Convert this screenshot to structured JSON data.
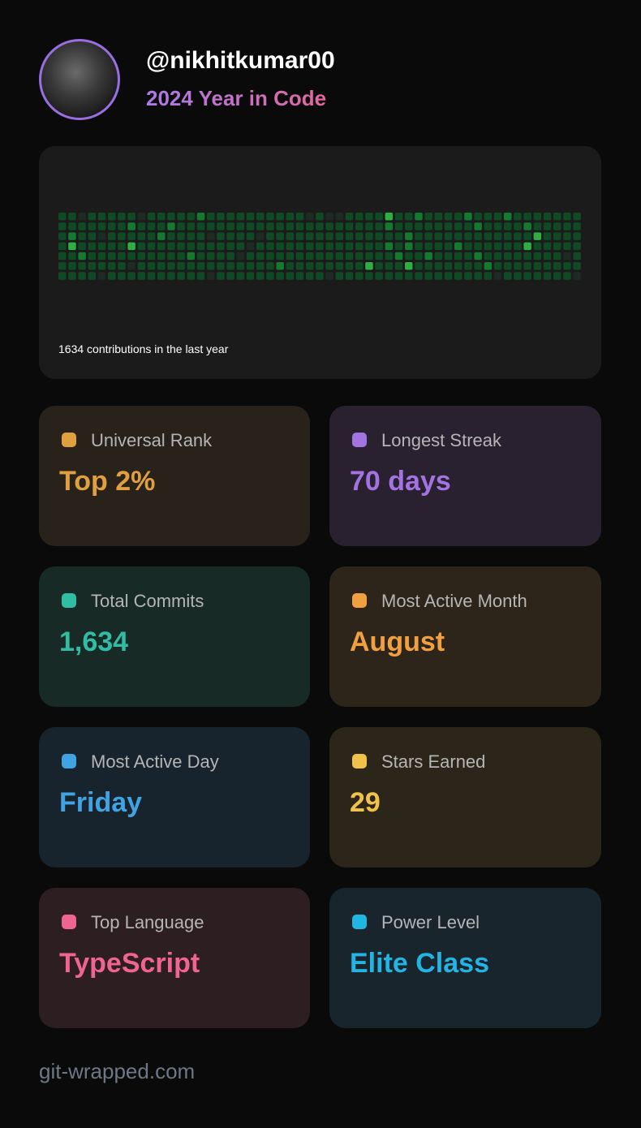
{
  "header": {
    "username": "@nikhitkumar00",
    "subtitle": "2024 Year in Code"
  },
  "contributions": {
    "caption": "1634 contributions in the last year",
    "levels": [
      "11011111011111211111111110100111131121111211121111111",
      "11111112111211111111111111111111121111111121111211111",
      "12110111112111101111011111111111111211111111111131111",
      "13111113111111111110111111111111121211112111111311111",
      "11211111111112111101111111111111112112111121111111101",
      "11111110111111111111112111111113111311111112111111111",
      "11110111111111101111111111101111111111111111011111110"
    ]
  },
  "stats": [
    {
      "label": "Universal Rank",
      "value": "Top 2%"
    },
    {
      "label": "Longest Streak",
      "value": "70 days"
    },
    {
      "label": "Total Commits",
      "value": "1,634"
    },
    {
      "label": "Most Active Month",
      "value": "August"
    },
    {
      "label": "Most Active Day",
      "value": "Friday"
    },
    {
      "label": "Stars Earned",
      "value": "29"
    },
    {
      "label": "Top Language",
      "value": "TypeScript"
    },
    {
      "label": "Power Level",
      "value": "Elite Class"
    }
  ],
  "footer": "git-wrapped.com"
}
